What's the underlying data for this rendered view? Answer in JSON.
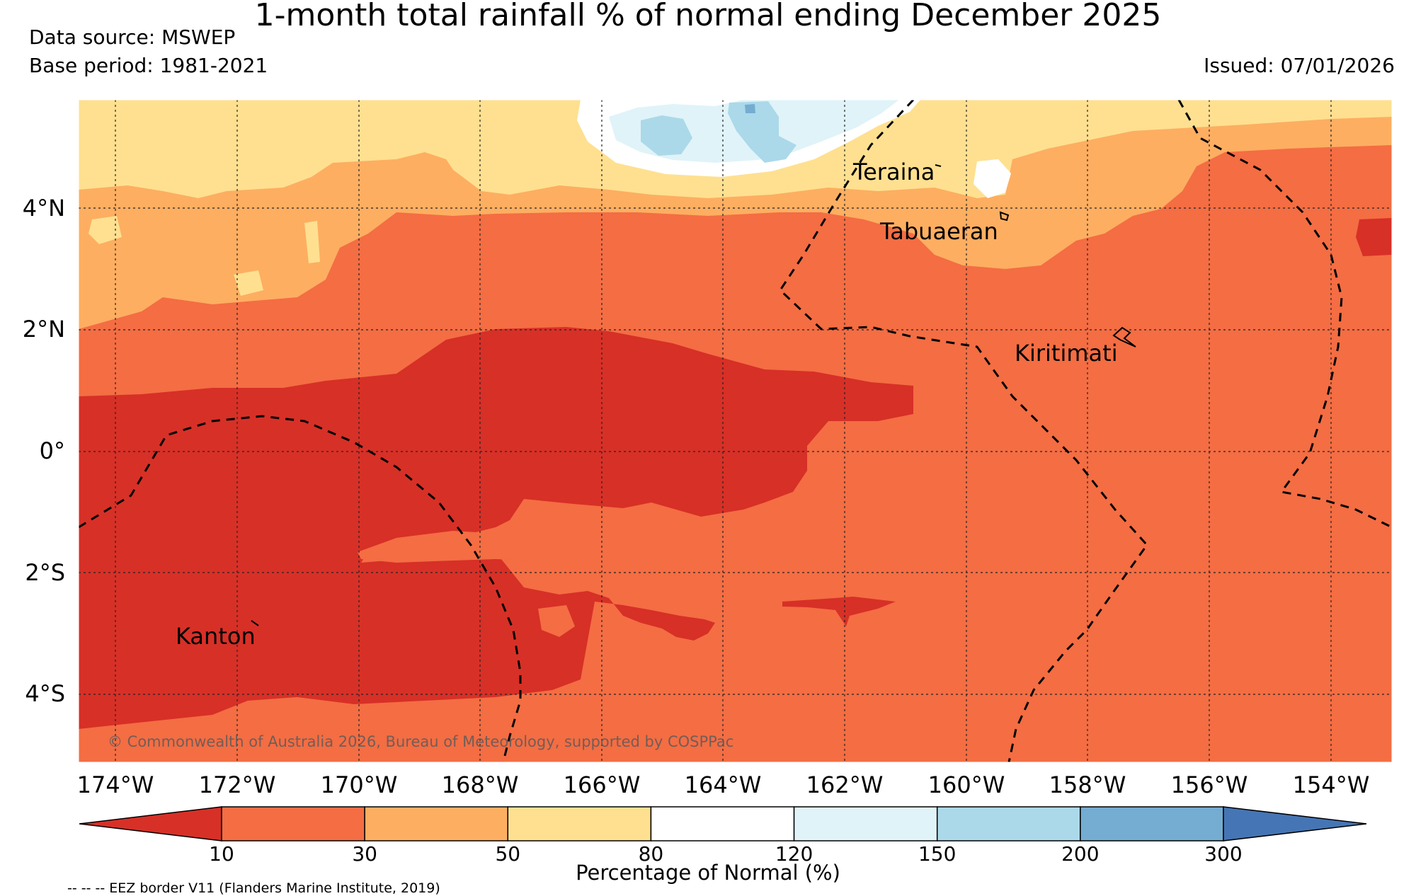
{
  "header": {
    "title": "1-month total rainfall % of normal ending December 2025",
    "data_source": "Data source: MSWEP",
    "base_period": "Base period: 1981-2021",
    "issued": "Issued: 07/01/2026"
  },
  "map": {
    "lat_labels": [
      "4°N",
      "2°N",
      "0°",
      "2°S",
      "4°S"
    ],
    "lon_labels": [
      "174°W",
      "172°W",
      "170°W",
      "168°W",
      "166°W",
      "164°W",
      "162°W",
      "160°W",
      "158°W",
      "156°W",
      "154°W"
    ],
    "islands": {
      "teraina": "Teraina",
      "tabuaeran": "Tabuaeran",
      "kiritimati": "Kiritimati",
      "kanton": "Kanton"
    },
    "copyright": "© Commonwealth of Australia 2026, Bureau of Meteorology, supported by COSPPac"
  },
  "colorbar": {
    "title": "Percentage of Normal (%)",
    "ticks": [
      "10",
      "30",
      "50",
      "80",
      "120",
      "150",
      "200",
      "300"
    ],
    "colors": [
      "#d73027",
      "#f46d43",
      "#fdae61",
      "#fee090",
      "#ffffff",
      "#e0f3f8",
      "#abd9e9",
      "#74add1",
      "#4575b4"
    ]
  },
  "legend": {
    "eez_note": "-- -- -- EEZ border V11 (Flanders Marine Institute, 2019)"
  }
}
